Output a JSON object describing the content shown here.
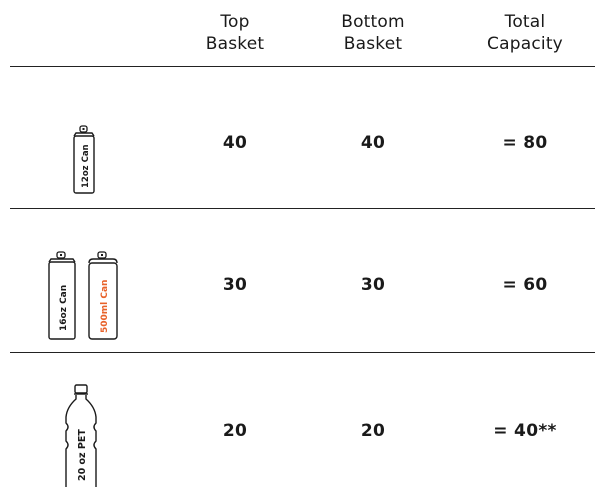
{
  "header": {
    "top_basket": [
      "Top",
      "Basket"
    ],
    "bottom_basket": [
      "Bottom",
      "Basket"
    ],
    "total_capacity": [
      "Total",
      "Capacity"
    ]
  },
  "rows": [
    {
      "icons": [
        {
          "name": "can-12oz-icon",
          "label": "12oz Can",
          "color": "#1a1a1a"
        }
      ],
      "top": "40",
      "bottom": "40",
      "total": "= 80"
    },
    {
      "icons": [
        {
          "name": "can-16oz-icon",
          "label": "16oz Can",
          "color": "#1a1a1a"
        },
        {
          "name": "can-500ml-icon",
          "label": "500ml Can",
          "color": "#e8622a"
        }
      ],
      "top": "30",
      "bottom": "30",
      "total": "= 60"
    },
    {
      "icons": [
        {
          "name": "bottle-20oz-pet-icon",
          "label": "20 oz PET",
          "color": "#1a1a1a"
        }
      ],
      "top": "20",
      "bottom": "20",
      "total": "= 40**"
    }
  ],
  "colors": {
    "text": "#1a1a1a",
    "accent": "#e8622a",
    "rule": "#222222"
  }
}
